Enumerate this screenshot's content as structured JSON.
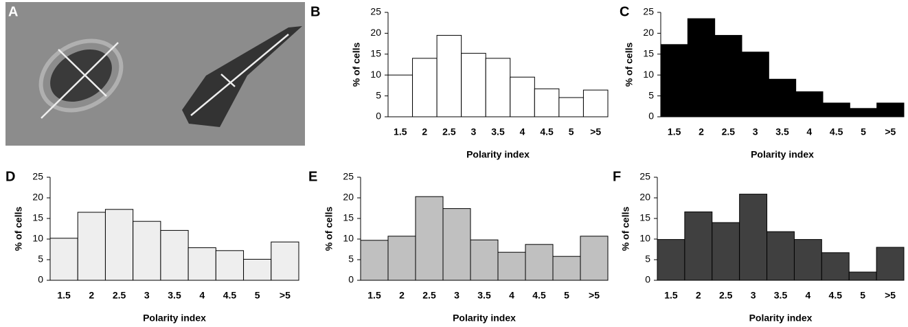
{
  "image_panel": {
    "label": "A"
  },
  "chart_data": [
    {
      "type": "bar",
      "label": "B",
      "ylabel": "% of cells",
      "xlabel": "Polarity index",
      "categories": [
        "1.5",
        "2",
        "2.5",
        "3",
        "3.5",
        "4",
        "4.5",
        "5",
        ">5"
      ],
      "values": [
        10,
        14,
        19.5,
        15.2,
        14,
        9.5,
        6.7,
        4.6,
        6.4
      ],
      "color": "#ffffff",
      "ylim": [
        0,
        25
      ],
      "yticks": [
        0,
        5,
        10,
        15,
        20,
        25
      ]
    },
    {
      "type": "bar",
      "label": "C",
      "ylabel": "% of cells",
      "xlabel": "Polarity index",
      "categories": [
        "1.5",
        "2",
        "2.5",
        "3",
        "3.5",
        "4",
        "4.5",
        "5",
        ">5"
      ],
      "values": [
        17.3,
        23.5,
        19.5,
        15.5,
        9,
        6,
        3.3,
        2,
        3.3
      ],
      "color": "#000000",
      "ylim": [
        0,
        25
      ],
      "yticks": [
        0,
        5,
        10,
        15,
        20,
        25
      ]
    },
    {
      "type": "bar",
      "label": "D",
      "ylabel": "% of cells",
      "xlabel": "Polarity index",
      "categories": [
        "1.5",
        "2",
        "2.5",
        "3",
        "3.5",
        "4",
        "4.5",
        "5",
        ">5"
      ],
      "values": [
        10.2,
        16.5,
        17.2,
        14.3,
        12.1,
        7.9,
        7.2,
        5.1,
        9.3
      ],
      "color": "#eeeeee",
      "ylim": [
        0,
        25
      ],
      "yticks": [
        0,
        5,
        10,
        15,
        20,
        25
      ]
    },
    {
      "type": "bar",
      "label": "E",
      "ylabel": "% of cells",
      "xlabel": "Polarity index",
      "categories": [
        "1.5",
        "2",
        "2.5",
        "3",
        "3.5",
        "4",
        "4.5",
        "5",
        ">5"
      ],
      "values": [
        9.7,
        10.7,
        20.3,
        17.4,
        9.8,
        6.8,
        8.7,
        5.8,
        10.7
      ],
      "color": "#c0c0c0",
      "ylim": [
        0,
        25
      ],
      "yticks": [
        0,
        5,
        10,
        15,
        20,
        25
      ]
    },
    {
      "type": "bar",
      "label": "F",
      "ylabel": "% of cells",
      "xlabel": "Polarity index",
      "categories": [
        "1.5",
        "2",
        "2.5",
        "3",
        "3.5",
        "4",
        "4.5",
        "5",
        ">5"
      ],
      "values": [
        9.9,
        16.6,
        14,
        20.9,
        11.8,
        9.9,
        6.7,
        2,
        8
      ],
      "color": "#404040",
      "ylim": [
        0,
        25
      ],
      "yticks": [
        0,
        5,
        10,
        15,
        20,
        25
      ]
    }
  ]
}
